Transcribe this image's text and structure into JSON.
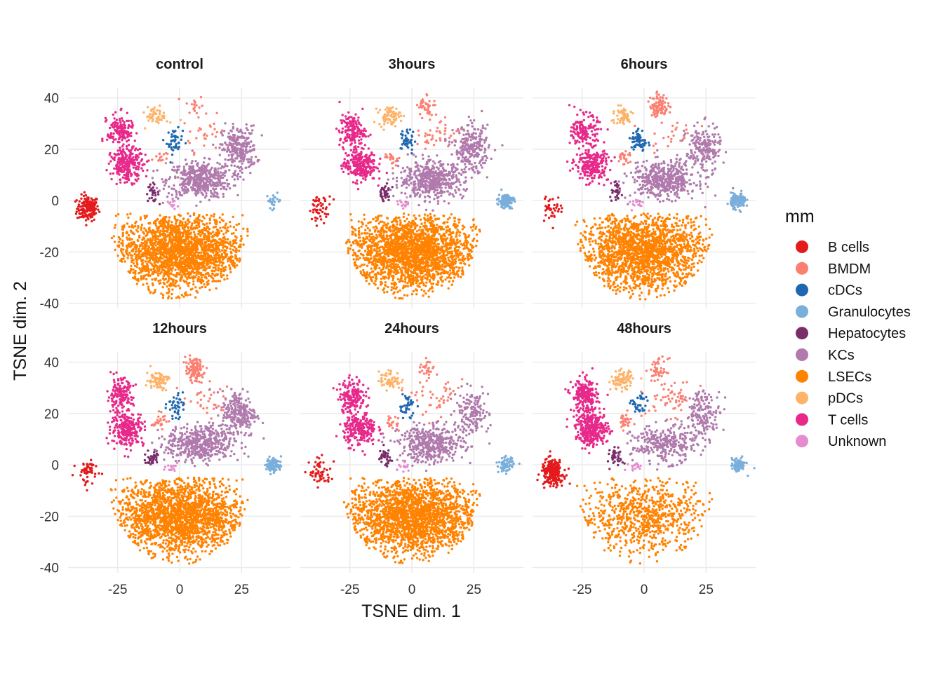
{
  "chart_data": {
    "type": "scatter",
    "xlabel": "TSNE dim. 1",
    "ylabel": "TSNE dim. 2",
    "xlim": [
      -45,
      45
    ],
    "ylim": [
      -42,
      44
    ],
    "x_ticks": [
      -25,
      0,
      25
    ],
    "y_ticks": [
      -40,
      -20,
      0,
      20,
      40
    ],
    "x_tick_labels": [
      "-25",
      "0",
      "25"
    ],
    "y_tick_labels": [
      "-40",
      "-20",
      "0",
      "20",
      "40"
    ],
    "grid": true,
    "facets": [
      "control",
      "3hours",
      "6hours",
      "12hours",
      "24hours",
      "48hours"
    ],
    "legend": {
      "title": "mm",
      "position": "right",
      "entries": [
        {
          "name": "B cells",
          "color": "#e41a1c"
        },
        {
          "name": "BMDM",
          "color": "#fb8072"
        },
        {
          "name": "cDCs",
          "color": "#1f68b0"
        },
        {
          "name": "Granulocytes",
          "color": "#7aaedb"
        },
        {
          "name": "Hepatocytes",
          "color": "#7b2d6b"
        },
        {
          "name": "KCs",
          "color": "#b07aad"
        },
        {
          "name": "LSECs",
          "color": "#ff8200"
        },
        {
          "name": "pDCs",
          "color": "#fdb46a"
        },
        {
          "name": "T cells",
          "color": "#e7298a"
        },
        {
          "name": "Unknown",
          "color": "#e58ccf"
        }
      ]
    },
    "clusters": [
      {
        "type": "B cells",
        "cx": -37,
        "cy": -3,
        "sx": 2.2,
        "sy": 2.5,
        "counts": [
          160,
          50,
          40,
          55,
          60,
          230
        ]
      },
      {
        "type": "BMDM",
        "cx": 6,
        "cy": 37,
        "sx": 1.8,
        "sy": 2.2,
        "counts": [
          18,
          40,
          90,
          110,
          30,
          45
        ]
      },
      {
        "type": "BMDM",
        "cx": 11,
        "cy": 26,
        "sx": 5,
        "sy": 3.5,
        "counts": [
          30,
          45,
          25,
          35,
          45,
          60
        ]
      },
      {
        "type": "BMDM",
        "cx": -8,
        "cy": 17,
        "sx": 1.5,
        "sy": 1.5,
        "counts": [
          15,
          20,
          25,
          25,
          20,
          30
        ]
      },
      {
        "type": "cDCs",
        "cx": -2,
        "cy": 23,
        "sx": 1.6,
        "sy": 2.4,
        "counts": [
          45,
          40,
          60,
          40,
          40,
          35
        ]
      },
      {
        "type": "Granulocytes",
        "cx": 38,
        "cy": 0,
        "sx": 1.5,
        "sy": 1.4,
        "counts": [
          25,
          120,
          140,
          95,
          80,
          85
        ]
      },
      {
        "type": "Hepatocytes",
        "cx": -11,
        "cy": 3,
        "sx": 1.3,
        "sy": 1.7,
        "counts": [
          28,
          35,
          30,
          40,
          38,
          38
        ]
      },
      {
        "type": "KCs",
        "cx": 8,
        "cy": 8,
        "sx": 6.5,
        "sy": 3.5,
        "counts": [
          480,
          500,
          480,
          480,
          420,
          300
        ]
      },
      {
        "type": "KCs",
        "cx": 24,
        "cy": 20,
        "sx": 3.5,
        "sy": 4.5,
        "counts": [
          250,
          250,
          200,
          250,
          160,
          160
        ]
      },
      {
        "type": "LSECs",
        "cx": 0,
        "cy": -20,
        "sx": 13,
        "sy": 7.5,
        "counts": [
          2000,
          2100,
          1800,
          1900,
          2000,
          750
        ]
      },
      {
        "type": "pDCs",
        "cx": -9,
        "cy": 33,
        "sx": 2.2,
        "sy": 1.8,
        "counts": [
          55,
          70,
          60,
          80,
          60,
          100
        ]
      },
      {
        "type": "T cells",
        "cx": -24,
        "cy": 27,
        "sx": 2.6,
        "sy": 3.2,
        "counts": [
          160,
          160,
          150,
          160,
          170,
          220
        ]
      },
      {
        "type": "T cells",
        "cx": -21,
        "cy": 14,
        "sx": 3.3,
        "sy": 3.2,
        "counts": [
          240,
          250,
          230,
          250,
          230,
          330
        ]
      },
      {
        "type": "Unknown",
        "cx": -3,
        "cy": -1,
        "sx": 1.5,
        "sy": 1,
        "counts": [
          12,
          15,
          15,
          15,
          15,
          15
        ]
      }
    ]
  }
}
